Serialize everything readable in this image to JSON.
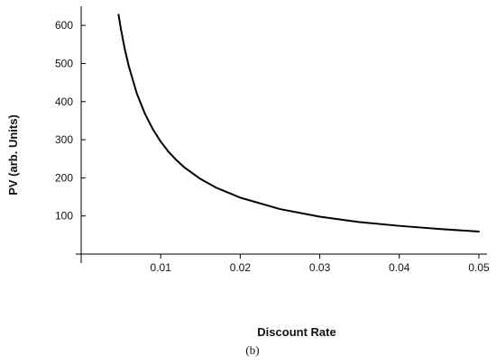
{
  "chart_data": {
    "type": "line",
    "xlabel": "Discount Rate",
    "ylabel": "PV (arb. Units)",
    "caption": "(b)",
    "xlim": [
      0,
      0.05
    ],
    "ylim": [
      0,
      650
    ],
    "x_ticks": [
      0.01,
      0.02,
      0.03,
      0.04,
      0.05
    ],
    "x_tick_labels": [
      "0.01",
      "0.02",
      "0.03",
      "0.04",
      "0.05"
    ],
    "y_ticks": [
      100,
      200,
      300,
      400,
      500,
      600
    ],
    "y_tick_labels": [
      "100",
      "200",
      "300",
      "400",
      "500",
      "600"
    ],
    "grid": false,
    "series": [
      {
        "color": "#000000",
        "x": [
          0.0047,
          0.005,
          0.0055,
          0.006,
          0.007,
          0.008,
          0.009,
          0.01,
          0.011,
          0.012,
          0.013,
          0.015,
          0.017,
          0.02,
          0.025,
          0.03,
          0.035,
          0.04,
          0.045,
          0.05
        ],
        "y": [
          628,
          590,
          536,
          492,
          421,
          369,
          328,
          295,
          268,
          246,
          227,
          197,
          174,
          148,
          118,
          98,
          84,
          74,
          66,
          59
        ]
      }
    ]
  }
}
